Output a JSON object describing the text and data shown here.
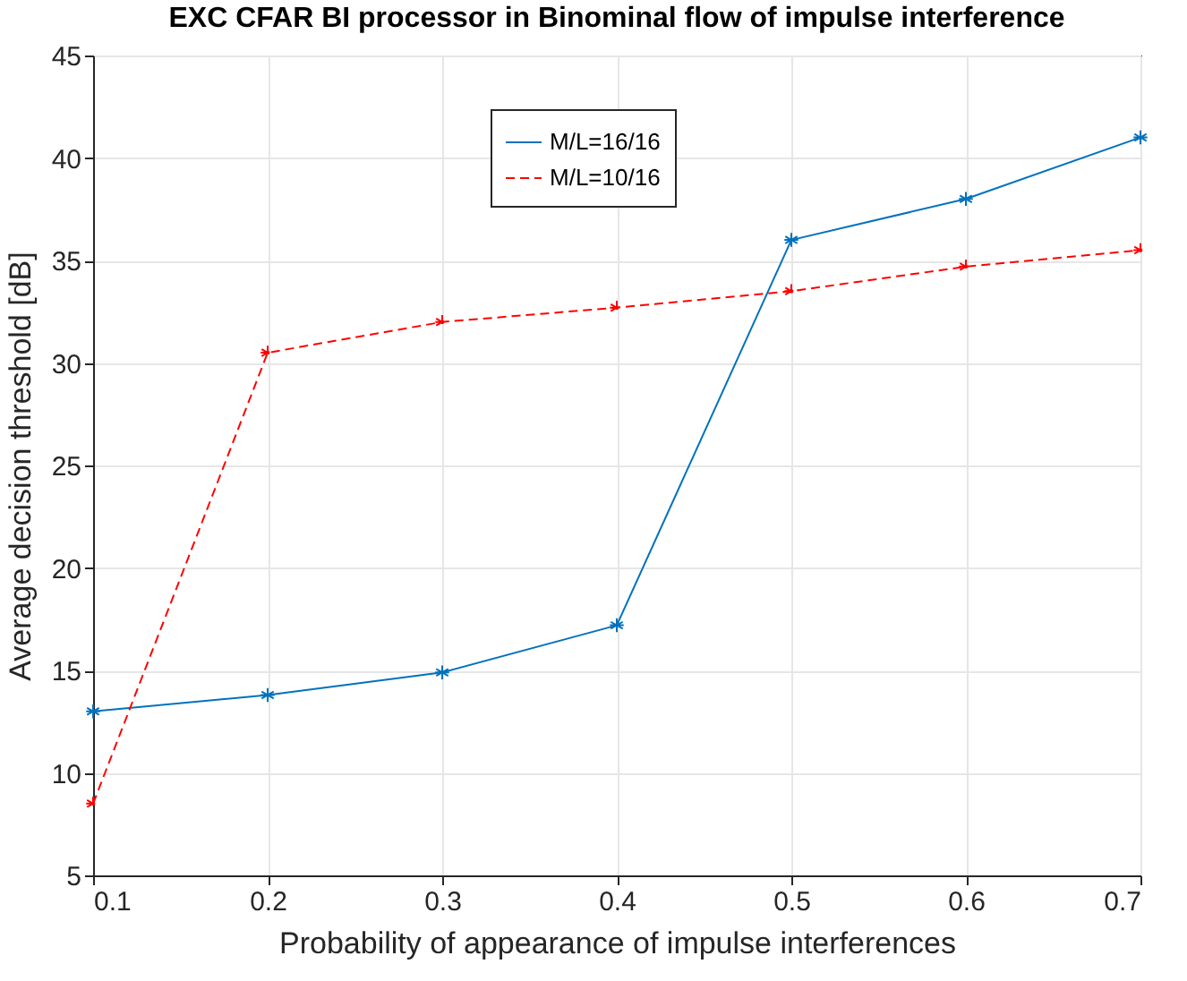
{
  "chart_data": {
    "type": "line",
    "title": "EXC CFAR BI processor in Binominal flow of impulse interference",
    "xlabel": "Probability of appearance of impulse interferences",
    "ylabel": "Average decision threshold [dB]",
    "x": [
      0.1,
      0.2,
      0.3,
      0.4,
      0.5,
      0.6,
      0.7
    ],
    "series": [
      {
        "name": "M/L=16/16",
        "color": "#0072bd",
        "line_style": "solid",
        "values": [
          13,
          13.8,
          14.9,
          17.2,
          36,
          38,
          41
        ]
      },
      {
        "name": "M/L=10/16",
        "color": "#ff0000",
        "line_style": "dashed",
        "values": [
          8.5,
          30.5,
          32,
          32.7,
          33.5,
          34.7,
          35.5
        ]
      }
    ],
    "xlim": [
      0.1,
      0.7
    ],
    "xticks": [
      0.1,
      0.2,
      0.3,
      0.4,
      0.5,
      0.6,
      0.7
    ],
    "ylim": [
      5,
      45
    ],
    "yticks": [
      5,
      10,
      15,
      20,
      25,
      30,
      35,
      40,
      45
    ],
    "grid": true,
    "legend": "top",
    "marker": "cross"
  }
}
